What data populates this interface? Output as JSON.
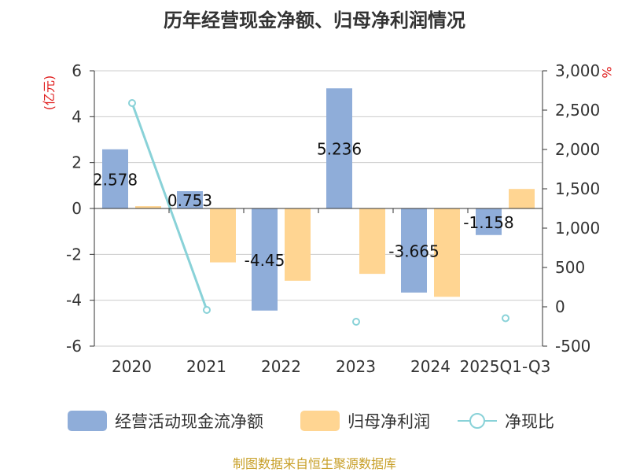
{
  "colors": {
    "cash": "#8FADD9",
    "profit": "#FFD592",
    "ratio": "#89D2D8",
    "unit": "#e02020",
    "source": "#c8a02a",
    "axis": "#333333",
    "grid": "#cccccc"
  },
  "chart_data": {
    "type": "bar",
    "title": "历年经营现金净额、归母净利润情况",
    "categories": [
      "2020",
      "2021",
      "2022",
      "2023",
      "2024",
      "2025Q1-Q3"
    ],
    "series": [
      {
        "name": "经营活动现金流净额",
        "type": "bar",
        "axis": "left",
        "values": [
          2.578,
          0.753,
          -4.45,
          5.236,
          -3.665,
          -1.158
        ]
      },
      {
        "name": "归母净利润",
        "type": "bar",
        "axis": "left",
        "values": [
          0.1,
          -2.35,
          -3.15,
          -2.85,
          -3.85,
          0.85
        ]
      },
      {
        "name": "净现比",
        "type": "line",
        "axis": "right",
        "values": [
          2590,
          -40,
          null,
          -190,
          null,
          -145
        ]
      }
    ],
    "data_labels": [
      "2.578",
      "0.753",
      "-4.45",
      "5.236",
      "-3.665",
      "-1.158"
    ],
    "yleft": {
      "unit": "(亿元)",
      "ylim": [
        -6,
        6
      ],
      "ticks": [
        "6",
        "4",
        "2",
        "0",
        "-2",
        "-4",
        "-6"
      ],
      "tick_values": [
        6,
        4,
        2,
        0,
        -2,
        -4,
        -6
      ]
    },
    "yright": {
      "unit": "%",
      "ylim": [
        -500,
        3000
      ],
      "ticks": [
        "3,000",
        "2,500",
        "2,000",
        "1,500",
        "1,000",
        "500",
        "0",
        "-500"
      ],
      "tick_values": [
        3000,
        2500,
        2000,
        1500,
        1000,
        500,
        0,
        -500
      ]
    },
    "legend": {
      "placement": "bottom",
      "items": [
        "经营活动现金流净额",
        "归母净利润",
        "净现比"
      ]
    },
    "grid": true
  },
  "source": "制图数据来自恒生聚源数据库"
}
